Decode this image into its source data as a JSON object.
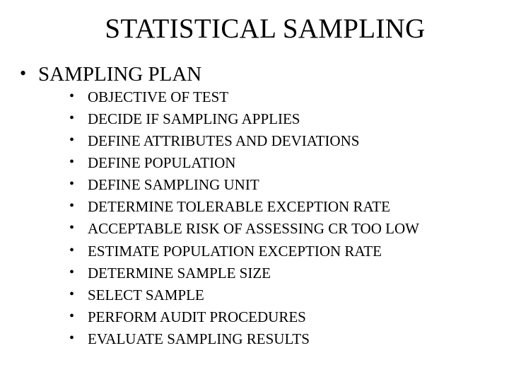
{
  "slide": {
    "title": "STATISTICAL SAMPLING",
    "title_fontsize": 39,
    "background_color": "#ffffff",
    "text_color": "#000000",
    "font_family": "Times New Roman",
    "level1": {
      "fontsize": 29,
      "items": [
        {
          "label": "SAMPLING PLAN",
          "children": [
            "OBJECTIVE OF TEST",
            "DECIDE IF SAMPLING APPLIES",
            "DEFINE ATTRIBUTES AND DEVIATIONS",
            "DEFINE POPULATION",
            "DEFINE SAMPLING UNIT",
            "DETERMINE TOLERABLE EXCEPTION RATE",
            "ACCEPTABLE RISK OF ASSESSING CR TOO LOW",
            "ESTIMATE POPULATION EXCEPTION RATE",
            "DETERMINE SAMPLE SIZE",
            "SELECT SAMPLE",
            "PERFORM AUDIT PROCEDURES",
            "EVALUATE SAMPLING RESULTS"
          ]
        }
      ]
    },
    "level2": {
      "fontsize": 21,
      "line_height": 1.48
    }
  }
}
